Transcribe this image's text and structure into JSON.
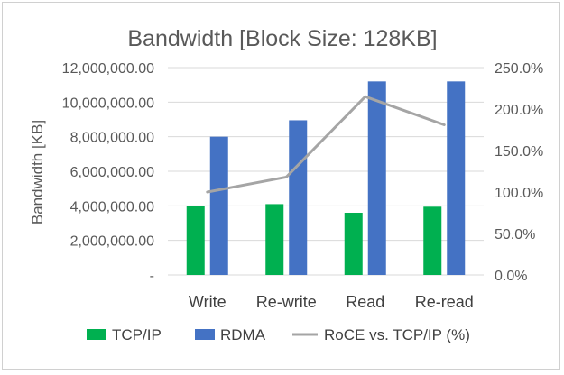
{
  "chart_data": {
    "type": "bar",
    "title": "Bandwidth [Block Size: 128KB]",
    "ylabel": "Bandwidth [KB]",
    "categories": [
      "Write",
      "Re-write",
      "Read",
      "Re-read"
    ],
    "series": [
      {
        "name": "TCP/IP",
        "kind": "bar",
        "axis": "primary",
        "color": "#00b050",
        "values": [
          4000000,
          4100000,
          3600000,
          3950000
        ]
      },
      {
        "name": "RDMA",
        "kind": "bar",
        "axis": "primary",
        "color": "#4472c4",
        "values": [
          8000000,
          8950000,
          11200000,
          11200000
        ]
      },
      {
        "name": "RoCE vs. TCP/IP (%)",
        "kind": "line",
        "axis": "secondary",
        "color": "#a5a5a5",
        "values": [
          100,
          118,
          215,
          181
        ]
      }
    ],
    "ylim": [
      0,
      12000000
    ],
    "y2lim": [
      0,
      250
    ],
    "yticks": [
      "-",
      "2,000,000.00",
      "4,000,000.00",
      "6,000,000.00",
      "8,000,000.00",
      "10,000,000.00",
      "12,000,000.00"
    ],
    "y2ticks": [
      "0.0%",
      "50.0%",
      "100.0%",
      "150.0%",
      "200.0%",
      "250.0%"
    ],
    "grid": true,
    "legend": "bottom"
  }
}
